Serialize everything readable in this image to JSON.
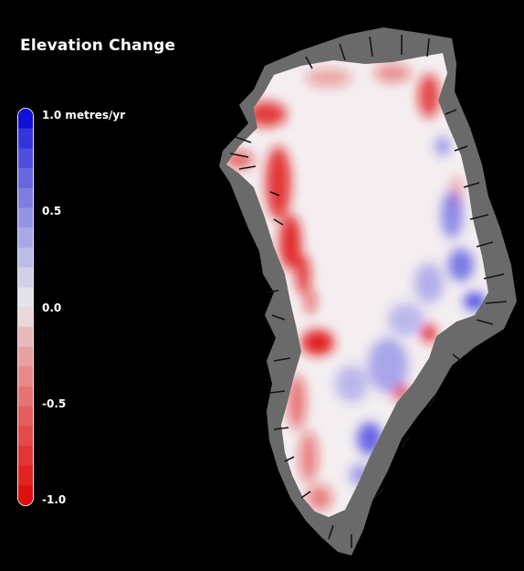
{
  "title": "Elevation Change",
  "legend": {
    "unit": "metres/yr",
    "ticks": [
      {
        "value": 1.0,
        "label": "1.0 metres/yr"
      },
      {
        "value": 0.5,
        "label": "0.5"
      },
      {
        "value": 0.0,
        "label": "0.0"
      },
      {
        "value": -0.5,
        "label": "-0.5"
      },
      {
        "value": -1.0,
        "label": "-1.0"
      }
    ],
    "range": [
      -1.0,
      1.0
    ],
    "colors": {
      "max": "#1010d8",
      "mid": "#ececec",
      "min": "#e01010"
    }
  },
  "map": {
    "region": "Greenland",
    "colors": {
      "background": "#000000",
      "rock": "#6a6a6a",
      "ice_neutral": "#f4eef0",
      "thinning": "#e01414",
      "thickening": "#3a3ae0"
    }
  }
}
